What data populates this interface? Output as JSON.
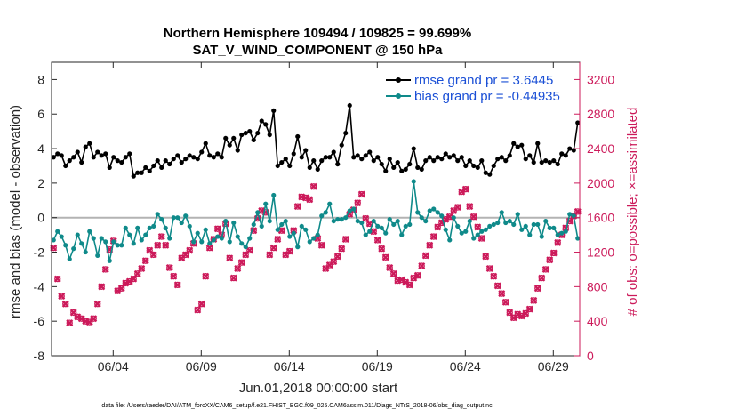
{
  "colors": {
    "rmse": "#000000",
    "bias": "#0f8a8a",
    "obs": "#cc1a5a",
    "legend_text": "#1a4fd6",
    "zero_line": "#b3b3b3"
  },
  "chart_data": {
    "type": "line",
    "title_line1": "Northern Hemisphere 109494 / 109825 = 99.699%",
    "title_line2": "SAT_V_WIND_COMPONENT @ 150 hPa",
    "xlabel": "Jun.01,2018 00:00:00 start",
    "ylabel_left": "rmse and bias (model - observation)",
    "ylabel_right": "# of obs: o=possible; ×=assimilated",
    "xlim": [
      0.5,
      30.5
    ],
    "ylim_left": [
      -8,
      9
    ],
    "ylim_right": [
      0,
      3400
    ],
    "x_ticks": [
      4,
      9,
      14,
      19,
      24,
      29
    ],
    "x_tick_labels": [
      "06/04",
      "06/09",
      "06/14",
      "06/19",
      "06/24",
      "06/29"
    ],
    "y_ticks_left": [
      -8,
      -6,
      -4,
      -2,
      0,
      2,
      4,
      6,
      8
    ],
    "y_tick_labels_left": [
      "-8",
      "-6",
      "-4",
      "-2",
      "0",
      "2",
      "4",
      "6",
      "8"
    ],
    "y_ticks_right": [
      0,
      400,
      800,
      1200,
      1600,
      2000,
      2400,
      2800,
      3200
    ],
    "y_tick_labels_right": [
      "0",
      "400",
      "800",
      "1200",
      "1600",
      "2000",
      "2400",
      "2800",
      "3200"
    ],
    "zero_line": 0,
    "series": [
      {
        "name": "rmse",
        "legend": "rmse grand pr = 3.6445",
        "marker": "filled-circle",
        "values": [
          3.5,
          3.7,
          3.6,
          3.0,
          3.3,
          3.5,
          3.8,
          3.2,
          4.1,
          4.3,
          3.5,
          3.8,
          3.6,
          3.7,
          2.9,
          3.5,
          3.3,
          3.2,
          3.5,
          3.7,
          2.4,
          2.6,
          2.6,
          2.9,
          2.7,
          3.0,
          3.3,
          2.9,
          3.3,
          3.1,
          3.4,
          3.6,
          3.2,
          3.4,
          3.6,
          3.5,
          3.4,
          3.8,
          4.3,
          3.6,
          3.5,
          3.7,
          3.5,
          4.6,
          4.2,
          4.6,
          3.9,
          4.8,
          4.9,
          5.0,
          4.5,
          4.9,
          5.6,
          5.4,
          4.8,
          6.2,
          3.0,
          3.2,
          3.4,
          3.0,
          3.7,
          4.7,
          3.5,
          3.9,
          2.9,
          3.3,
          2.8,
          3.3,
          3.5,
          3.5,
          3.8,
          3.1,
          4.2,
          4.9,
          6.5,
          3.5,
          3.6,
          3.4,
          3.6,
          3.8,
          3.3,
          3.5,
          3.1,
          2.7,
          3.4,
          2.9,
          3.2,
          2.7,
          2.8,
          3.1,
          4.0,
          2.9,
          2.8,
          3.3,
          3.5,
          3.3,
          3.5,
          3.4,
          3.7,
          3.5,
          3.6,
          3.3,
          3.5,
          3.0,
          3.3,
          3.0,
          2.9,
          3.3,
          2.6,
          2.5,
          3.0,
          3.4,
          3.5,
          3.3,
          3.6,
          4.3,
          4.1,
          4.2,
          3.4,
          3.6,
          3.2,
          4.3,
          3.2,
          3.3,
          3.2,
          3.3,
          3.1,
          3.7,
          3.6,
          4.0,
          3.9,
          5.5
        ]
      },
      {
        "name": "bias",
        "legend": "bias grand pr = -0.44935",
        "marker": "filled-circle",
        "values": [
          -1.3,
          -0.8,
          -1.1,
          -1.6,
          -2.4,
          -1.8,
          -1.0,
          -1.5,
          -2.0,
          -0.8,
          -1.2,
          -2.2,
          -1.2,
          -1.4,
          -2.5,
          -1.4,
          -1.6,
          -1.6,
          -0.6,
          -1.0,
          -1.5,
          -0.6,
          -1.3,
          -1.0,
          -0.6,
          -0.5,
          0.2,
          -0.1,
          -0.6,
          -1.2,
          0.0,
          0.0,
          -0.3,
          0.1,
          -0.5,
          -1.4,
          -0.9,
          -1.4,
          -0.7,
          -1.5,
          -1.3,
          -1.1,
          -1.2,
          -0.2,
          -1.4,
          -0.3,
          -1.1,
          -1.5,
          -1.7,
          -1.2,
          -0.4,
          0.3,
          -0.5,
          0.8,
          -0.2,
          1.3,
          -0.7,
          -0.4,
          -0.2,
          -1.1,
          -0.9,
          -1.7,
          -0.5,
          -0.7,
          -1.4,
          -1.2,
          -1.0,
          0.1,
          0.3,
          0.8,
          -0.2,
          -0.1,
          -0.1,
          0.0,
          0.4,
          0.5,
          -0.2,
          -0.3,
          -1.0,
          -0.8,
          -0.2,
          -0.5,
          -0.6,
          -0.9,
          -0.1,
          -0.4,
          -0.2,
          -1.0,
          -0.5,
          -0.4,
          2.1,
          0.3,
          0.0,
          -0.2,
          0.4,
          0.5,
          0.3,
          0.1,
          -0.7,
          -1.3,
          0.0,
          -0.5,
          -0.9,
          -0.8,
          -0.2,
          -1.2,
          -1.0,
          -0.8,
          -0.7,
          -0.5,
          -0.4,
          -0.3,
          0.3,
          -0.3,
          -0.2,
          -0.4,
          0.2,
          -0.7,
          -0.5,
          -1.0,
          -0.4,
          -0.4,
          -1.1,
          -0.2,
          -0.6,
          -0.6,
          -1.0,
          -0.9,
          -0.8,
          0.2,
          0.1,
          -1.2
        ]
      },
      {
        "name": "obs possible",
        "marker": "open-circle",
        "axis": "right",
        "values": [
          1250,
          890,
          690,
          600,
          380,
          500,
          450,
          430,
          400,
          390,
          430,
          600,
          800,
          1000,
          1230,
          1330,
          750,
          780,
          840,
          860,
          890,
          950,
          1010,
          1100,
          1220,
          1170,
          1280,
          1380,
          1280,
          1020,
          920,
          820,
          1130,
          1170,
          1220,
          1300,
          530,
          600,
          920,
          1250,
          1350,
          1470,
          1400,
          1530,
          1130,
          900,
          1010,
          1080,
          1170,
          1220,
          1450,
          1590,
          1680,
          1660,
          1170,
          1250,
          1350,
          1450,
          1170,
          1210,
          1450,
          1730,
          1840,
          1830,
          1810,
          1960,
          1360,
          1280,
          1010,
          1050,
          1090,
          1150,
          1240,
          1350,
          1640,
          1690,
          1770,
          1870,
          1590,
          1530,
          1440,
          1340,
          1240,
          1140,
          1020,
          950,
          870,
          880,
          850,
          820,
          900,
          930,
          1040,
          1160,
          1280,
          1380,
          1490,
          1540,
          1580,
          1610,
          1680,
          1720,
          1900,
          1930,
          1730,
          1610,
          1490,
          1360,
          1150,
          1010,
          920,
          810,
          720,
          620,
          500,
          440,
          480,
          460,
          490,
          540,
          640,
          780,
          900,
          1000,
          1110,
          1190,
          1310,
          1400,
          1480,
          1560,
          1620,
          1670
        ]
      },
      {
        "name": "obs assimilated",
        "marker": "x",
        "axis": "right",
        "values": [
          1250,
          890,
          690,
          600,
          380,
          500,
          450,
          430,
          400,
          390,
          430,
          600,
          800,
          1000,
          1230,
          1330,
          750,
          780,
          840,
          860,
          890,
          950,
          1010,
          1100,
          1220,
          1170,
          1280,
          1380,
          1280,
          1020,
          920,
          820,
          1130,
          1170,
          1220,
          1300,
          530,
          600,
          920,
          1250,
          1350,
          1470,
          1400,
          1530,
          1130,
          900,
          1010,
          1080,
          1170,
          1220,
          1450,
          1590,
          1680,
          1660,
          1170,
          1250,
          1350,
          1450,
          1170,
          1210,
          1450,
          1730,
          1840,
          1830,
          1810,
          1960,
          1360,
          1280,
          1010,
          1050,
          1090,
          1150,
          1240,
          1350,
          1640,
          1690,
          1770,
          1870,
          1590,
          1530,
          1440,
          1340,
          1240,
          1140,
          1020,
          950,
          870,
          880,
          850,
          820,
          900,
          930,
          1040,
          1160,
          1280,
          1380,
          1490,
          1540,
          1580,
          1610,
          1680,
          1720,
          1900,
          1930,
          1730,
          1610,
          1490,
          1360,
          1150,
          1010,
          920,
          810,
          720,
          620,
          500,
          440,
          480,
          460,
          490,
          540,
          640,
          780,
          900,
          1000,
          1110,
          1190,
          1310,
          1400,
          1480,
          1560,
          1620,
          1670
        ]
      }
    ]
  },
  "footnote": "data file: /Users/raeder/DAI/ATM_forcXX/CAM6_setup/f.e21.FHIST_BGC.f09_025.CAM6assim.011/Diags_NTrS_2018-06/obs_diag_output.nc"
}
